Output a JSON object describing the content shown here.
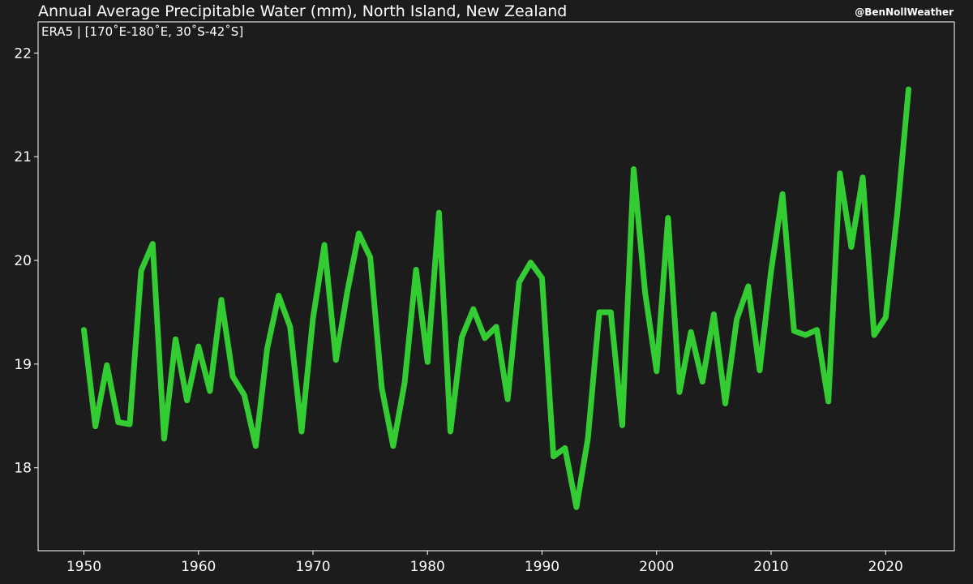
{
  "chart_data": {
    "type": "line",
    "title": "Annual Average Precipitable Water (mm), North Island, New Zealand",
    "annotation": "ERA5 | [170˚E-180˚E, 30˚S-42˚S]",
    "credit": "@BenNollWeather",
    "xlim": [
      1946,
      2026
    ],
    "ylim": [
      17.2,
      22.3
    ],
    "x_ticks": [
      1950,
      1960,
      1970,
      1980,
      1990,
      2000,
      2010,
      2020
    ],
    "y_ticks": [
      18,
      19,
      20,
      21,
      22
    ],
    "line_color": "#33cc33",
    "background": "#1c1c1c",
    "grid": false,
    "series": [
      {
        "x": [
          1950,
          1951,
          1952,
          1953,
          1954,
          1955,
          1956,
          1957,
          1958,
          1959,
          1960,
          1961,
          1962,
          1963,
          1964,
          1965,
          1966,
          1967,
          1968,
          1969,
          1970,
          1971,
          1972,
          1973,
          1974,
          1975,
          1976,
          1977,
          1978,
          1979,
          1980,
          1981,
          1982,
          1983,
          1984,
          1985,
          1986,
          1987,
          1988,
          1989,
          1990,
          1991,
          1992,
          1993,
          1994,
          1995,
          1996,
          1997,
          1998,
          1999,
          2000,
          2001,
          2002,
          2003,
          2004,
          2005,
          2006,
          2007,
          2008,
          2009,
          2010,
          2011,
          2012,
          2013,
          2014,
          2015,
          2016,
          2017,
          2018,
          2019,
          2020,
          2021,
          2022
        ],
        "values": [
          19.33,
          18.4,
          18.99,
          18.44,
          18.42,
          19.9,
          20.16,
          18.28,
          19.24,
          18.65,
          19.17,
          18.74,
          19.62,
          18.88,
          18.7,
          18.21,
          19.15,
          19.66,
          19.36,
          18.35,
          19.44,
          20.15,
          19.04,
          19.7,
          20.26,
          20.03,
          18.77,
          18.21,
          18.82,
          19.91,
          19.02,
          20.46,
          18.35,
          19.26,
          19.53,
          19.25,
          19.36,
          18.66,
          19.79,
          19.98,
          19.83,
          18.11,
          18.19,
          17.62,
          18.28,
          19.5,
          19.5,
          18.41,
          20.88,
          19.69,
          18.93,
          20.41,
          18.73,
          19.31,
          18.83,
          19.48,
          18.62,
          19.43,
          19.75,
          18.94,
          19.9,
          20.64,
          19.32,
          19.28,
          19.33,
          18.64,
          20.84,
          20.13,
          20.8,
          19.28,
          19.45,
          20.44,
          21.65
        ]
      }
    ]
  }
}
